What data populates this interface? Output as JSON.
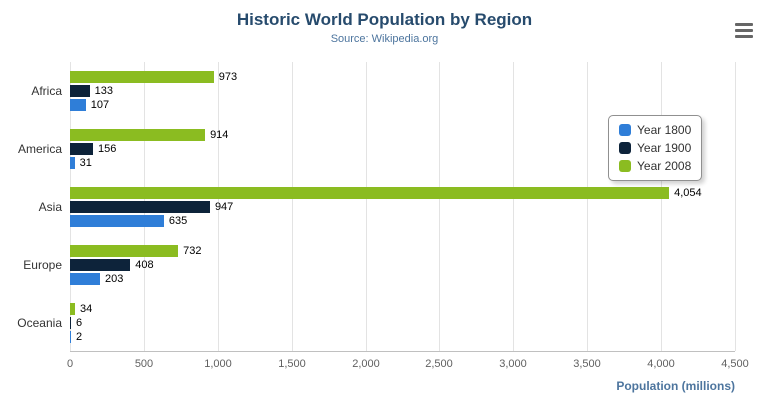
{
  "chart": {
    "title": "Historic World Population by Region",
    "subtitle": "Source: Wikipedia.org",
    "axis_title": "Population (millions)"
  },
  "chart_data": {
    "type": "bar",
    "orientation": "horizontal",
    "title": "Historic World Population by Region",
    "subtitle": "Source: Wikipedia.org",
    "xlabel": "Population (millions)",
    "ylabel": "",
    "categories": [
      "Africa",
      "America",
      "Asia",
      "Europe",
      "Oceania"
    ],
    "series": [
      {
        "name": "Year 1800",
        "color": "#2f7ed8",
        "values": [
          107,
          31,
          635,
          203,
          2
        ]
      },
      {
        "name": "Year 1900",
        "color": "#0d233a",
        "values": [
          133,
          156,
          947,
          408,
          6
        ]
      },
      {
        "name": "Year 2008",
        "color": "#8bbc21",
        "values": [
          973,
          914,
          4054,
          732,
          34
        ]
      }
    ],
    "bar_order_top_to_bottom": [
      "Year 2008",
      "Year 1900",
      "Year 1800"
    ],
    "xlim": [
      0,
      4500
    ],
    "xticks": [
      0,
      500,
      1000,
      1500,
      2000,
      2500,
      3000,
      3500,
      4000,
      4500
    ],
    "grid": true,
    "legend_position": "right"
  },
  "colors": {
    "title": "#274b6d",
    "subtitle": "#4d759e",
    "axis_title": "#4d759e",
    "tick_label": "#606060",
    "gridline": "#e3e3e3",
    "axis_line": "#c0c0c0"
  },
  "icons": {
    "export_menu": "hamburger-icon"
  }
}
